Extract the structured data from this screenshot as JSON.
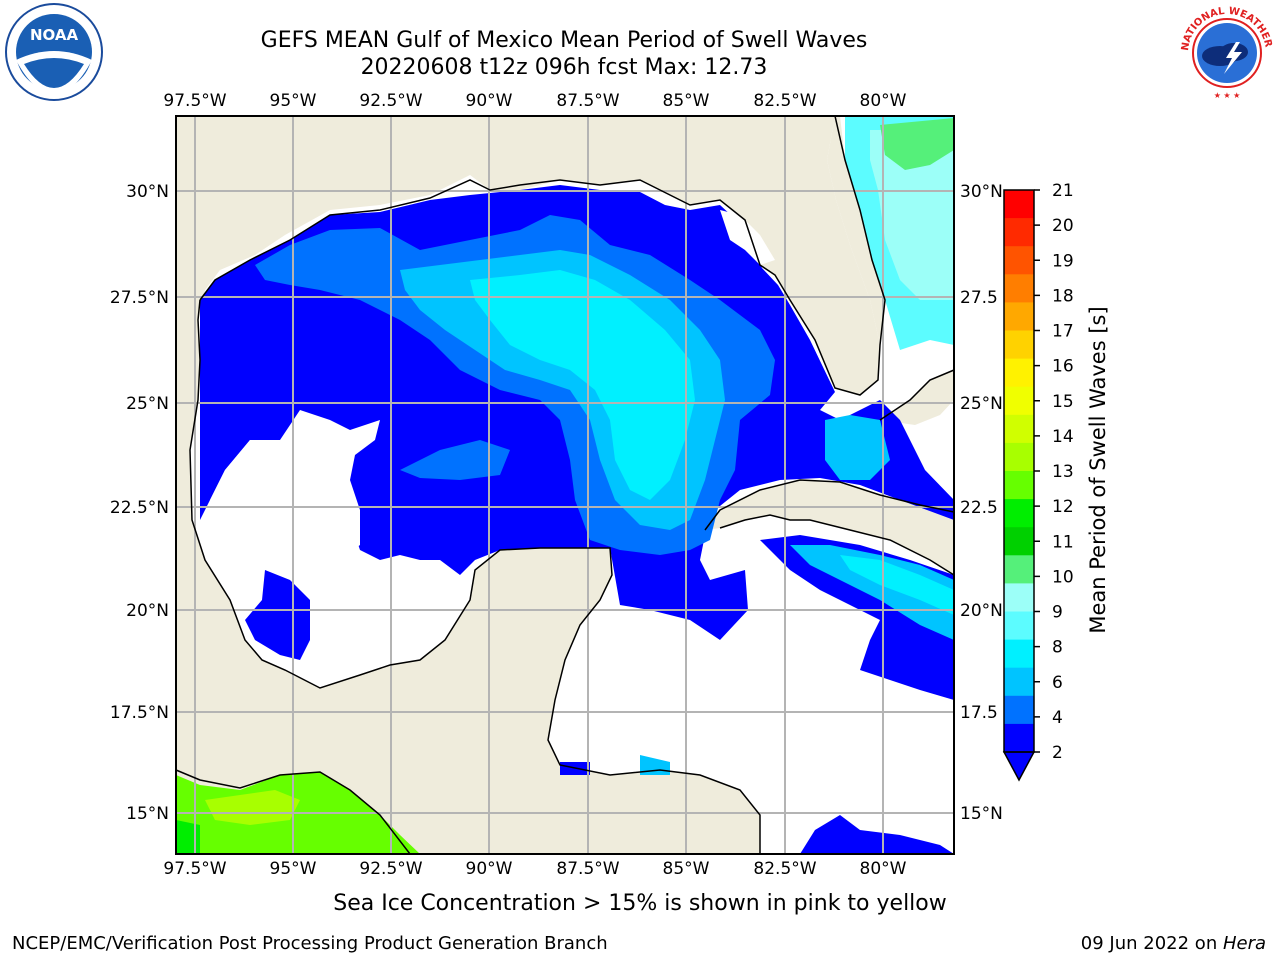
{
  "header": {
    "title_line1": "GEFS MEAN Gulf of Mexico Mean Period of Swell Waves",
    "title_line2": "20220608 t12z 096h fcst   Max: 12.73"
  },
  "logos": {
    "left": "noaa-logo",
    "right": "nws-logo",
    "right_text": "NATIONAL WEATHER SERVICE"
  },
  "map": {
    "lon_labels": [
      "97.5°W",
      "95°W",
      "92.5°W",
      "90°W",
      "87.5°W",
      "85°W",
      "82.5°W",
      "80°W"
    ],
    "lat_labels_left": [
      "30°N",
      "27.5°N",
      "25°N",
      "22.5°N",
      "20°N",
      "17.5°N",
      "15°N"
    ],
    "lat_labels_right": [
      "30°N",
      "27.5",
      "25°N",
      "22.5",
      "20°N",
      "17.5",
      "15°N"
    ],
    "colors": {
      "land": "#efecdc",
      "grid": "#b4b4b4",
      "coast": "#000000"
    }
  },
  "colorbar": {
    "label": "Mean Period of Swell Waves [s]",
    "ticks": [
      "21",
      "20",
      "19",
      "18",
      "17",
      "16",
      "15",
      "14",
      "13",
      "12",
      "11",
      "10",
      "9",
      "8",
      "6",
      "4",
      "2"
    ],
    "colors": [
      "#ff0000",
      "#ff2a00",
      "#ff5400",
      "#ff7e00",
      "#ffa800",
      "#ffd200",
      "#fff200",
      "#f0ff00",
      "#d0ff00",
      "#a8ff00",
      "#66ff00",
      "#00ee00",
      "#00d000",
      "#55f07a",
      "#9cfff8",
      "#5cfcff",
      "#00f0ff",
      "#00c4ff",
      "#0072ff",
      "#0000ff"
    ]
  },
  "footnote": "Sea Ice Concentration > 15% is shown in pink to yellow",
  "footer": {
    "left": "NCEP/EMC/Verification Post Processing Product Generation Branch",
    "date": "09 Jun 2022 on ",
    "host": "Hera"
  }
}
